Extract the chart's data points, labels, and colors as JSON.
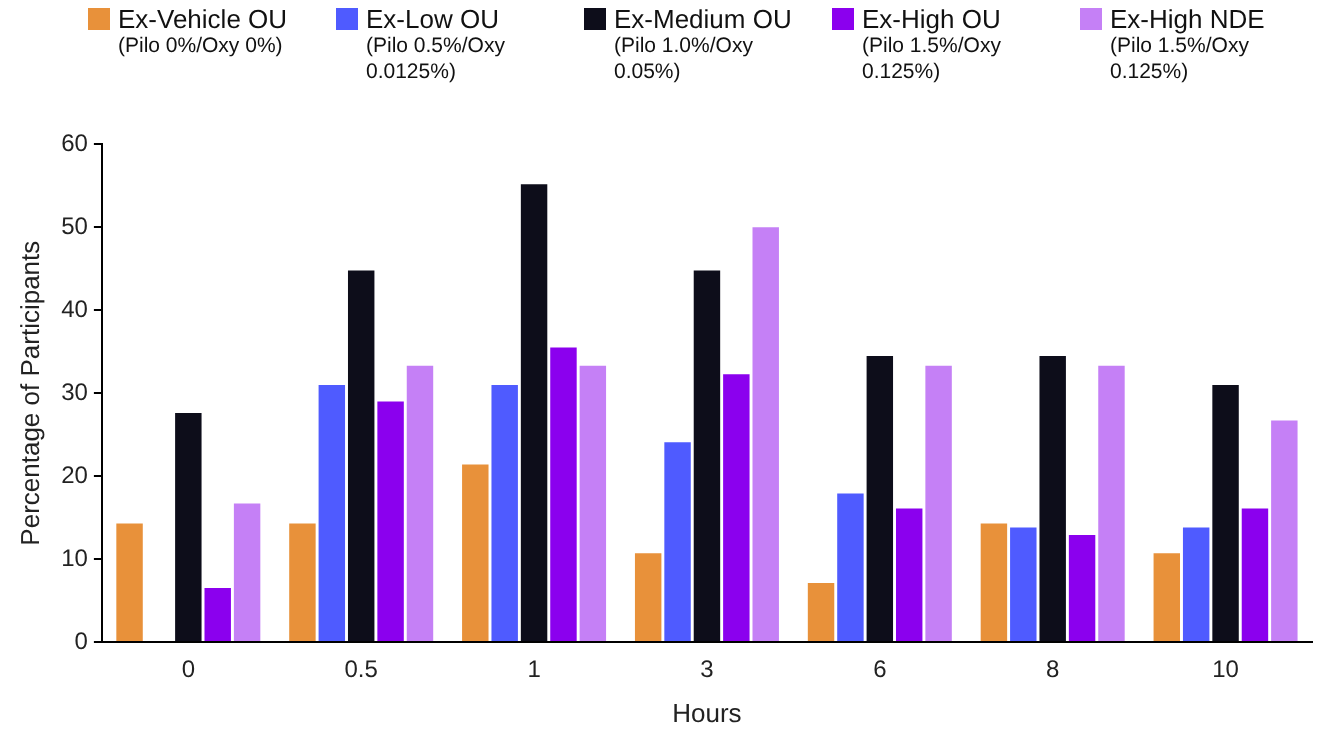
{
  "chart_data": {
    "type": "bar",
    "xlabel": "Hours",
    "ylabel": "Percentage of Participants",
    "categories": [
      "0",
      "0.5",
      "1",
      "3",
      "6",
      "8",
      "10"
    ],
    "series": [
      {
        "name": "Ex-Vehicle OU (Pilo 0%/Oxy 0%)",
        "color": "#e8913a",
        "values": [
          14.3,
          14.3,
          21.4,
          10.7,
          7.1,
          14.3,
          10.7
        ]
      },
      {
        "name": "Ex-Low OU (Pilo 0.5%/Oxy 0.0125%)",
        "color": "#4f5bff",
        "values": [
          0,
          31.0,
          31.0,
          24.1,
          17.9,
          13.8,
          13.8
        ]
      },
      {
        "name": "Ex-Medium OU (Pilo 1.0%/Oxy 0.05%)",
        "color": "#0d0d1a",
        "values": [
          27.6,
          44.8,
          55.2,
          44.8,
          34.5,
          34.5,
          31.0
        ]
      },
      {
        "name": "Ex-High OU (Pilo 1.5%/Oxy 0.125%)",
        "color": "#8b00ee",
        "values": [
          6.5,
          29.0,
          35.5,
          32.3,
          16.1,
          12.9,
          16.1
        ]
      },
      {
        "name": "Ex-High NDE (Pilo 1.5%/Oxy 0.125%)",
        "color": "#c580f6",
        "values": [
          16.7,
          33.3,
          33.3,
          50,
          33.3,
          33.3,
          26.7
        ]
      }
    ],
    "ylim": [
      0,
      60
    ],
    "yticks": [
      0,
      10,
      20,
      30,
      40,
      50,
      60
    ],
    "grid": false,
    "legend": "top"
  }
}
